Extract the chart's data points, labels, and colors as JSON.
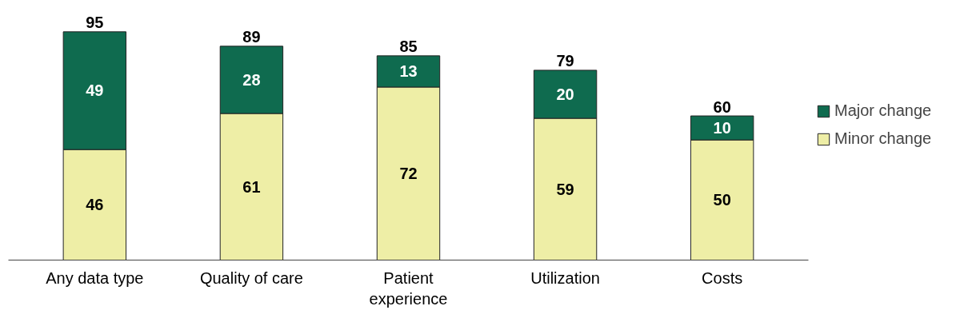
{
  "chart_data": {
    "type": "bar",
    "stacked": true,
    "categories": [
      "Any data type",
      "Quality of care",
      "Patient\nexperience",
      "Utilization",
      "Costs"
    ],
    "series": [
      {
        "name": "Minor change",
        "color": "#eeeea6",
        "values": [
          46,
          61,
          72,
          59,
          50
        ]
      },
      {
        "name": "Major change",
        "color": "#0f6b4f",
        "values": [
          49,
          28,
          13,
          20,
          10
        ]
      }
    ],
    "data_labels": true,
    "totals": [
      "95",
      "89",
      "85",
      "79",
      "60"
    ],
    "tick_labels": "x",
    "grid": false,
    "legend": "right"
  }
}
